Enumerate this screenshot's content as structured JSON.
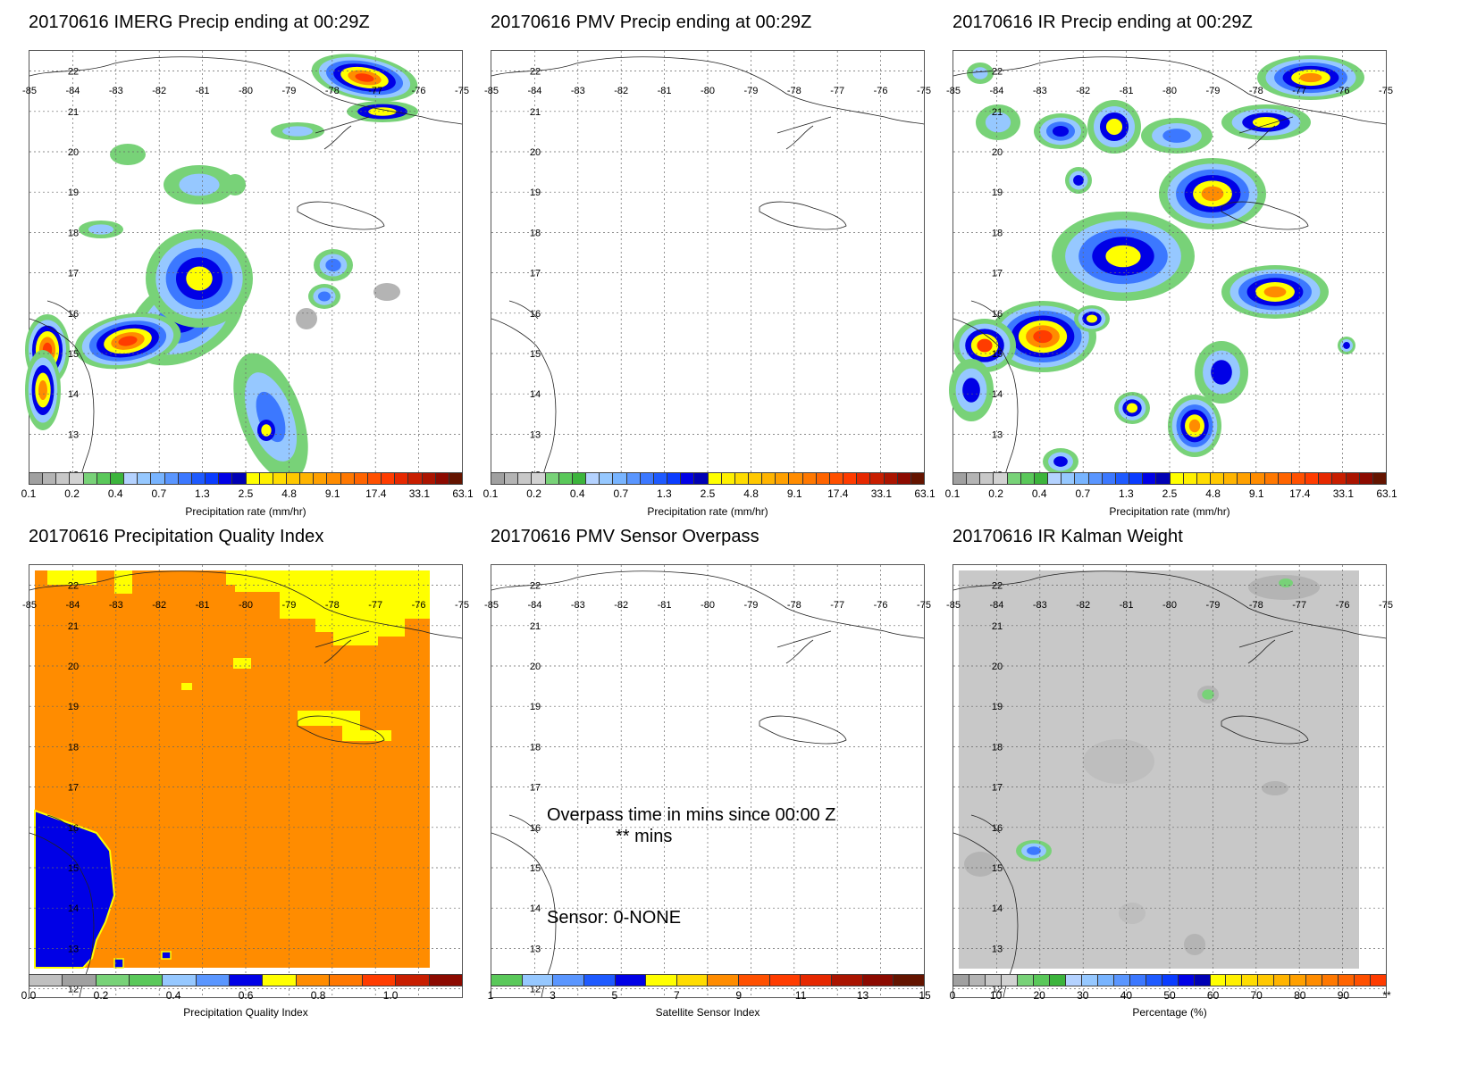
{
  "panels": [
    {
      "title": "20170616 IMERG Precip ending at 00:29Z",
      "colorbar_label": "Precipitation rate (mm/hr)",
      "colorbar_ticks": [
        "0.1",
        "0.2",
        "0.4",
        "0.7",
        "1.3",
        "2.5",
        "4.8",
        "9.1",
        "17.4",
        "33.1",
        "63.1"
      ],
      "map_style": "precip-imerg"
    },
    {
      "title": "20170616 PMV Precip ending at 00:29Z",
      "colorbar_label": "Precipitation rate (mm/hr)",
      "colorbar_ticks": [
        "0.1",
        "0.2",
        "0.4",
        "0.7",
        "1.3",
        "2.5",
        "4.8",
        "9.1",
        "17.4",
        "33.1",
        "63.1"
      ],
      "map_style": "empty"
    },
    {
      "title": "20170616 IR Precip ending at 00:29Z",
      "colorbar_label": "Precipitation rate (mm/hr)",
      "colorbar_ticks": [
        "0.1",
        "0.2",
        "0.4",
        "0.7",
        "1.3",
        "2.5",
        "4.8",
        "9.1",
        "17.4",
        "33.1",
        "63.1"
      ],
      "map_style": "precip-ir"
    },
    {
      "title": "20170616 Precipitation Quality Index",
      "colorbar_label": "Precipitation Quality Index",
      "colorbar_ticks": [
        "0.0",
        "0.2",
        "0.4",
        "0.6",
        "0.8",
        "1.0"
      ],
      "map_style": "quality"
    },
    {
      "title": "20170616 PMV Sensor Overpass",
      "colorbar_label": "Satellite Sensor Index",
      "colorbar_ticks": [
        "1",
        "3",
        "5",
        "7",
        "9",
        "11",
        "13",
        "15"
      ],
      "map_style": "overpass",
      "overlay": {
        "line1": "Overpass time in mins since 00:00 Z",
        "line2": "** mins",
        "sensor": "Sensor:   0-NONE"
      }
    },
    {
      "title": "20170616 IR Kalman Weight",
      "colorbar_label": "Percentage (%)",
      "colorbar_ticks": [
        "0",
        "10",
        "20",
        "30",
        "40",
        "50",
        "60",
        "70",
        "80",
        "90",
        "**"
      ],
      "map_style": "kalman"
    }
  ],
  "map_axes": {
    "lon_labels": [
      "-85",
      "-84",
      "-83",
      "-82",
      "-81",
      "-80",
      "-79",
      "-78",
      "-77",
      "-76",
      "-75"
    ],
    "lat_labels": [
      "22",
      "21",
      "20",
      "19",
      "18",
      "17",
      "16",
      "15",
      "14",
      "13",
      "12"
    ]
  },
  "colors": {
    "precip_scale": [
      "#a0a0a0",
      "#b4b4b4",
      "#c8c8c8",
      "#d2d2d2",
      "#78d278",
      "#5ac85a",
      "#3cb43c",
      "#b4d2ff",
      "#96c8ff",
      "#78b4ff",
      "#5a96ff",
      "#3c78ff",
      "#1e5aff",
      "#0a3cff",
      "#0000e6",
      "#0000b4",
      "#ffff00",
      "#fff000",
      "#ffdc00",
      "#ffc800",
      "#ffb400",
      "#ffa000",
      "#ff8c00",
      "#ff7800",
      "#ff6400",
      "#ff5000",
      "#ff3c00",
      "#e62800",
      "#c81e00",
      "#aa1400",
      "#8c0a00",
      "#641400"
    ],
    "quality_scale": [
      "#c0c0c0",
      "#a0a0a0",
      "#78d278",
      "#5ac85a",
      "#96c8ff",
      "#5a96ff",
      "#0000e6",
      "#ffff00",
      "#ff8c00",
      "#ff7800",
      "#ff3c00",
      "#c81e00",
      "#8c0a00"
    ],
    "sensor_scale": [
      "#5ac85a",
      "#96c8ff",
      "#5a96ff",
      "#1e5aff",
      "#0000e6",
      "#ffff00",
      "#ffdc00",
      "#ff8c00",
      "#ff5000",
      "#ff3c00",
      "#e62800",
      "#aa1400",
      "#8c0a00",
      "#641400"
    ],
    "kalman_scale": [
      "#a0a0a0",
      "#b4b4b4",
      "#c8c8c8",
      "#d2d2d2",
      "#78d278",
      "#5ac85a",
      "#3cb43c",
      "#b4d2ff",
      "#96c8ff",
      "#78b4ff",
      "#5a96ff",
      "#3c78ff",
      "#1e5aff",
      "#0a3cff",
      "#0000e6",
      "#0000b4",
      "#ffff00",
      "#fff000",
      "#ffdc00",
      "#ffc800",
      "#ffb400",
      "#ffa000",
      "#ff8c00",
      "#ff7800",
      "#ff6400",
      "#ff5000",
      "#ff3c00"
    ]
  }
}
